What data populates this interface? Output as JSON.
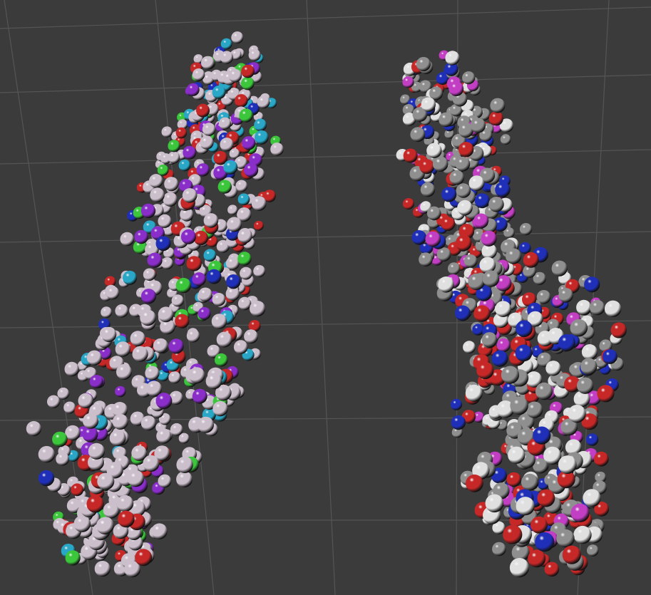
{
  "viewport": {
    "background": "#3b3b3b",
    "grid_color": "#555555"
  },
  "models": [
    {
      "name": "molecule-left",
      "style": "chain-colored spheres",
      "palette": {
        "primary": "#ccbfcc",
        "accents": [
          "#8a2ec9",
          "#c62828",
          "#2aa7c6",
          "#3cc63c",
          "#1f2fb8"
        ]
      }
    },
    {
      "name": "molecule-right",
      "style": "element-colored spheres",
      "palette": {
        "primary": "#8f8f8f",
        "accents": [
          "#e0e0e0",
          "#c62828",
          "#1f2fb8",
          "#c23ec2"
        ]
      }
    }
  ]
}
